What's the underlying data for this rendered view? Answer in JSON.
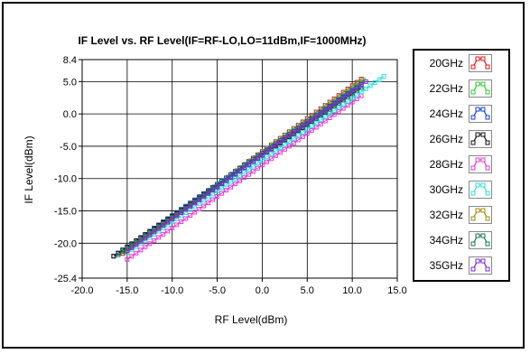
{
  "chart_data": {
    "type": "scatter",
    "title": "IF Level vs. RF Level(IF=RF-LO,LO=11dBm,IF=1000MHz)",
    "xlabel": "RF Level(dBm)",
    "ylabel": "IF Level(dBm)",
    "xlim": [
      -20.0,
      15.0
    ],
    "ylim": [
      -25.4,
      8.4
    ],
    "xticks": [
      "-20.0",
      "-15.0",
      "-10.0",
      "-5.0",
      "0.0",
      "5.0",
      "10.0",
      "15.0"
    ],
    "yticks": [
      {
        "value": 8.4,
        "label": "8.4"
      },
      {
        "value": 5.0,
        "label": "5.0"
      },
      {
        "value": 0.0,
        "label": "0.0"
      },
      {
        "value": -5.0,
        "label": "-5.0"
      },
      {
        "value": -10.0,
        "label": "-10.0"
      },
      {
        "value": -15.0,
        "label": "-15.0"
      },
      {
        "value": -20.0,
        "label": "-20.0"
      },
      {
        "value": -25.4,
        "label": "-25.4"
      }
    ],
    "grid": true,
    "legend_position": "right",
    "series": [
      {
        "name": "20GHz",
        "color": "#e8141a",
        "x_start": -15.5,
        "x_end": 11.0,
        "y_start": -21.6,
        "y_end": 5.4
      },
      {
        "name": "22GHz",
        "color": "#2ecc2e",
        "x_start": -15.3,
        "x_end": 11.0,
        "y_start": -21.3,
        "y_end": 5.3
      },
      {
        "name": "24GHz",
        "color": "#1a3fd6",
        "x_start": -16.5,
        "x_end": 11.0,
        "y_start": -22.0,
        "y_end": 4.6
      },
      {
        "name": "26GHz",
        "color": "#111111",
        "x_start": -16.5,
        "x_end": 11.0,
        "y_start": -22.0,
        "y_end": 4.0
      },
      {
        "name": "28GHz",
        "color": "#e83ad6",
        "x_start": -15.0,
        "x_end": 11.0,
        "y_start": -22.5,
        "y_end": 2.8
      },
      {
        "name": "30GHz",
        "color": "#2fe0e0",
        "x_start": -15.0,
        "x_end": 13.5,
        "y_start": -21.5,
        "y_end": 5.8
      },
      {
        "name": "32GHz",
        "color": "#a08a10",
        "x_start": -15.0,
        "x_end": 11.0,
        "y_start": -21.0,
        "y_end": 4.5
      },
      {
        "name": "34GHz",
        "color": "#1a7a55",
        "x_start": -16.0,
        "x_end": 11.0,
        "y_start": -21.8,
        "y_end": 4.3
      },
      {
        "name": "35GHz",
        "color": "#7a2ad6",
        "x_start": -15.0,
        "x_end": 11.5,
        "y_start": -21.2,
        "y_end": 5.0
      }
    ],
    "x_step": 0.5
  }
}
